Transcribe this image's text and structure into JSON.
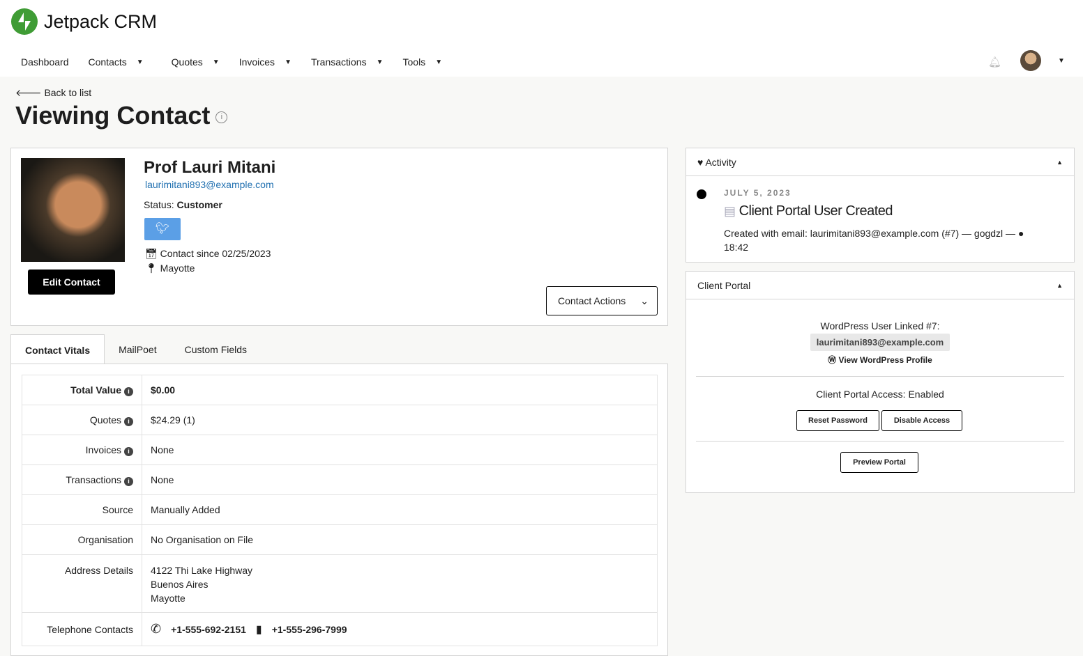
{
  "app": {
    "name": "Jetpack CRM"
  },
  "nav": [
    {
      "label": "Dashboard"
    },
    {
      "label": "Contacts"
    },
    {
      "label": "Quotes"
    },
    {
      "label": "Invoices"
    },
    {
      "label": "Transactions"
    },
    {
      "label": "Tools"
    }
  ],
  "page": {
    "back": "Back to list",
    "title": "Viewing Contact"
  },
  "contact": {
    "name": "Prof Lauri Mitani",
    "email": "laurimitani893@example.com",
    "status_label": "Status:",
    "status": "Customer",
    "since": "Contact since 02/25/2023",
    "location": "Mayotte",
    "edit": "Edit Contact",
    "actions": "Contact Actions"
  },
  "tabs": [
    {
      "label": "Contact Vitals"
    },
    {
      "label": "MailPoet"
    },
    {
      "label": "Custom Fields"
    }
  ],
  "vitals": [
    {
      "label": "Total Value",
      "value": "$0.00"
    },
    {
      "label": "Quotes",
      "value": "$24.29 (1)"
    },
    {
      "label": "Invoices",
      "value": "None"
    },
    {
      "label": "Transactions",
      "value": "None"
    },
    {
      "label": "Source",
      "value": "Manually Added"
    },
    {
      "label": "Organisation",
      "value": "No Organisation on File"
    },
    {
      "label": "Address Details",
      "lines": [
        "4122 Thi Lake Highway",
        "Buenos Aires",
        "Mayotte"
      ]
    },
    {
      "label": "Telephone Contacts",
      "phones": [
        "+1-555-692-2151",
        "+1-555-296-7999"
      ]
    }
  ],
  "activity": {
    "title": "Activity",
    "date": "JULY 5, 2023",
    "event": "Client Portal User Created",
    "detail": "Created with email: laurimitani893@example.com (#7) — gogdzl —",
    "time": "18:42"
  },
  "portal": {
    "title": "Client Portal",
    "linked": "WordPress User Linked #7:",
    "email": "laurimitani893@example.com",
    "view": "View WordPress Profile",
    "access": "Client Portal Access: Enabled",
    "reset": "Reset Password",
    "disable": "Disable Access",
    "preview": "Preview Portal"
  },
  "colors": {
    "brand": "#3f9c35",
    "link": "#2271b1",
    "twitter": "#5b9fe6"
  }
}
